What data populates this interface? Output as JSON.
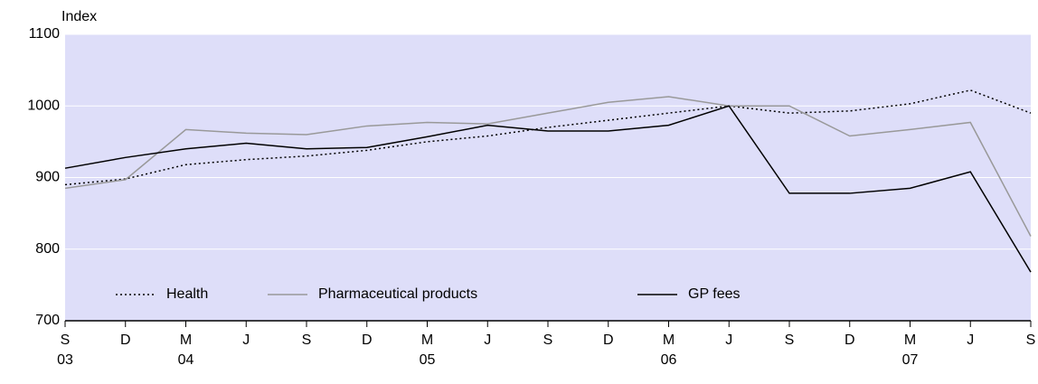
{
  "chart_data": {
    "type": "line",
    "y_label": "Index",
    "categories": [
      "S",
      "D",
      "M",
      "J",
      "S",
      "D",
      "M",
      "J",
      "S",
      "D",
      "M",
      "J",
      "S",
      "D",
      "M",
      "J",
      "S"
    ],
    "year_labels": [
      "03",
      null,
      "04",
      null,
      null,
      null,
      "05",
      null,
      null,
      null,
      "06",
      null,
      null,
      null,
      "07",
      null,
      null
    ],
    "series": [
      {
        "name": "Health",
        "color": "#000000",
        "style": "dotted",
        "values": [
          890,
          898,
          918,
          925,
          930,
          938,
          950,
          958,
          970,
          980,
          990,
          1000,
          990,
          993,
          1003,
          1022,
          990
        ]
      },
      {
        "name": "Pharmaceutical products",
        "color": "#999999",
        "style": "solid",
        "values": [
          885,
          897,
          967,
          962,
          960,
          972,
          977,
          975,
          990,
          1005,
          1013,
          1000,
          1000,
          958,
          967,
          977,
          818
        ]
      },
      {
        "name": "GP fees",
        "color": "#000000",
        "style": "solid",
        "values": [
          913,
          928,
          940,
          948,
          940,
          942,
          957,
          973,
          965,
          965,
          973,
          1000,
          878,
          878,
          885,
          908,
          768
        ]
      }
    ],
    "ylim": [
      700,
      1100
    ],
    "yticks": [
      700,
      800,
      900,
      1000,
      1100
    ],
    "grid": true,
    "plot_color": "#dedef9"
  }
}
